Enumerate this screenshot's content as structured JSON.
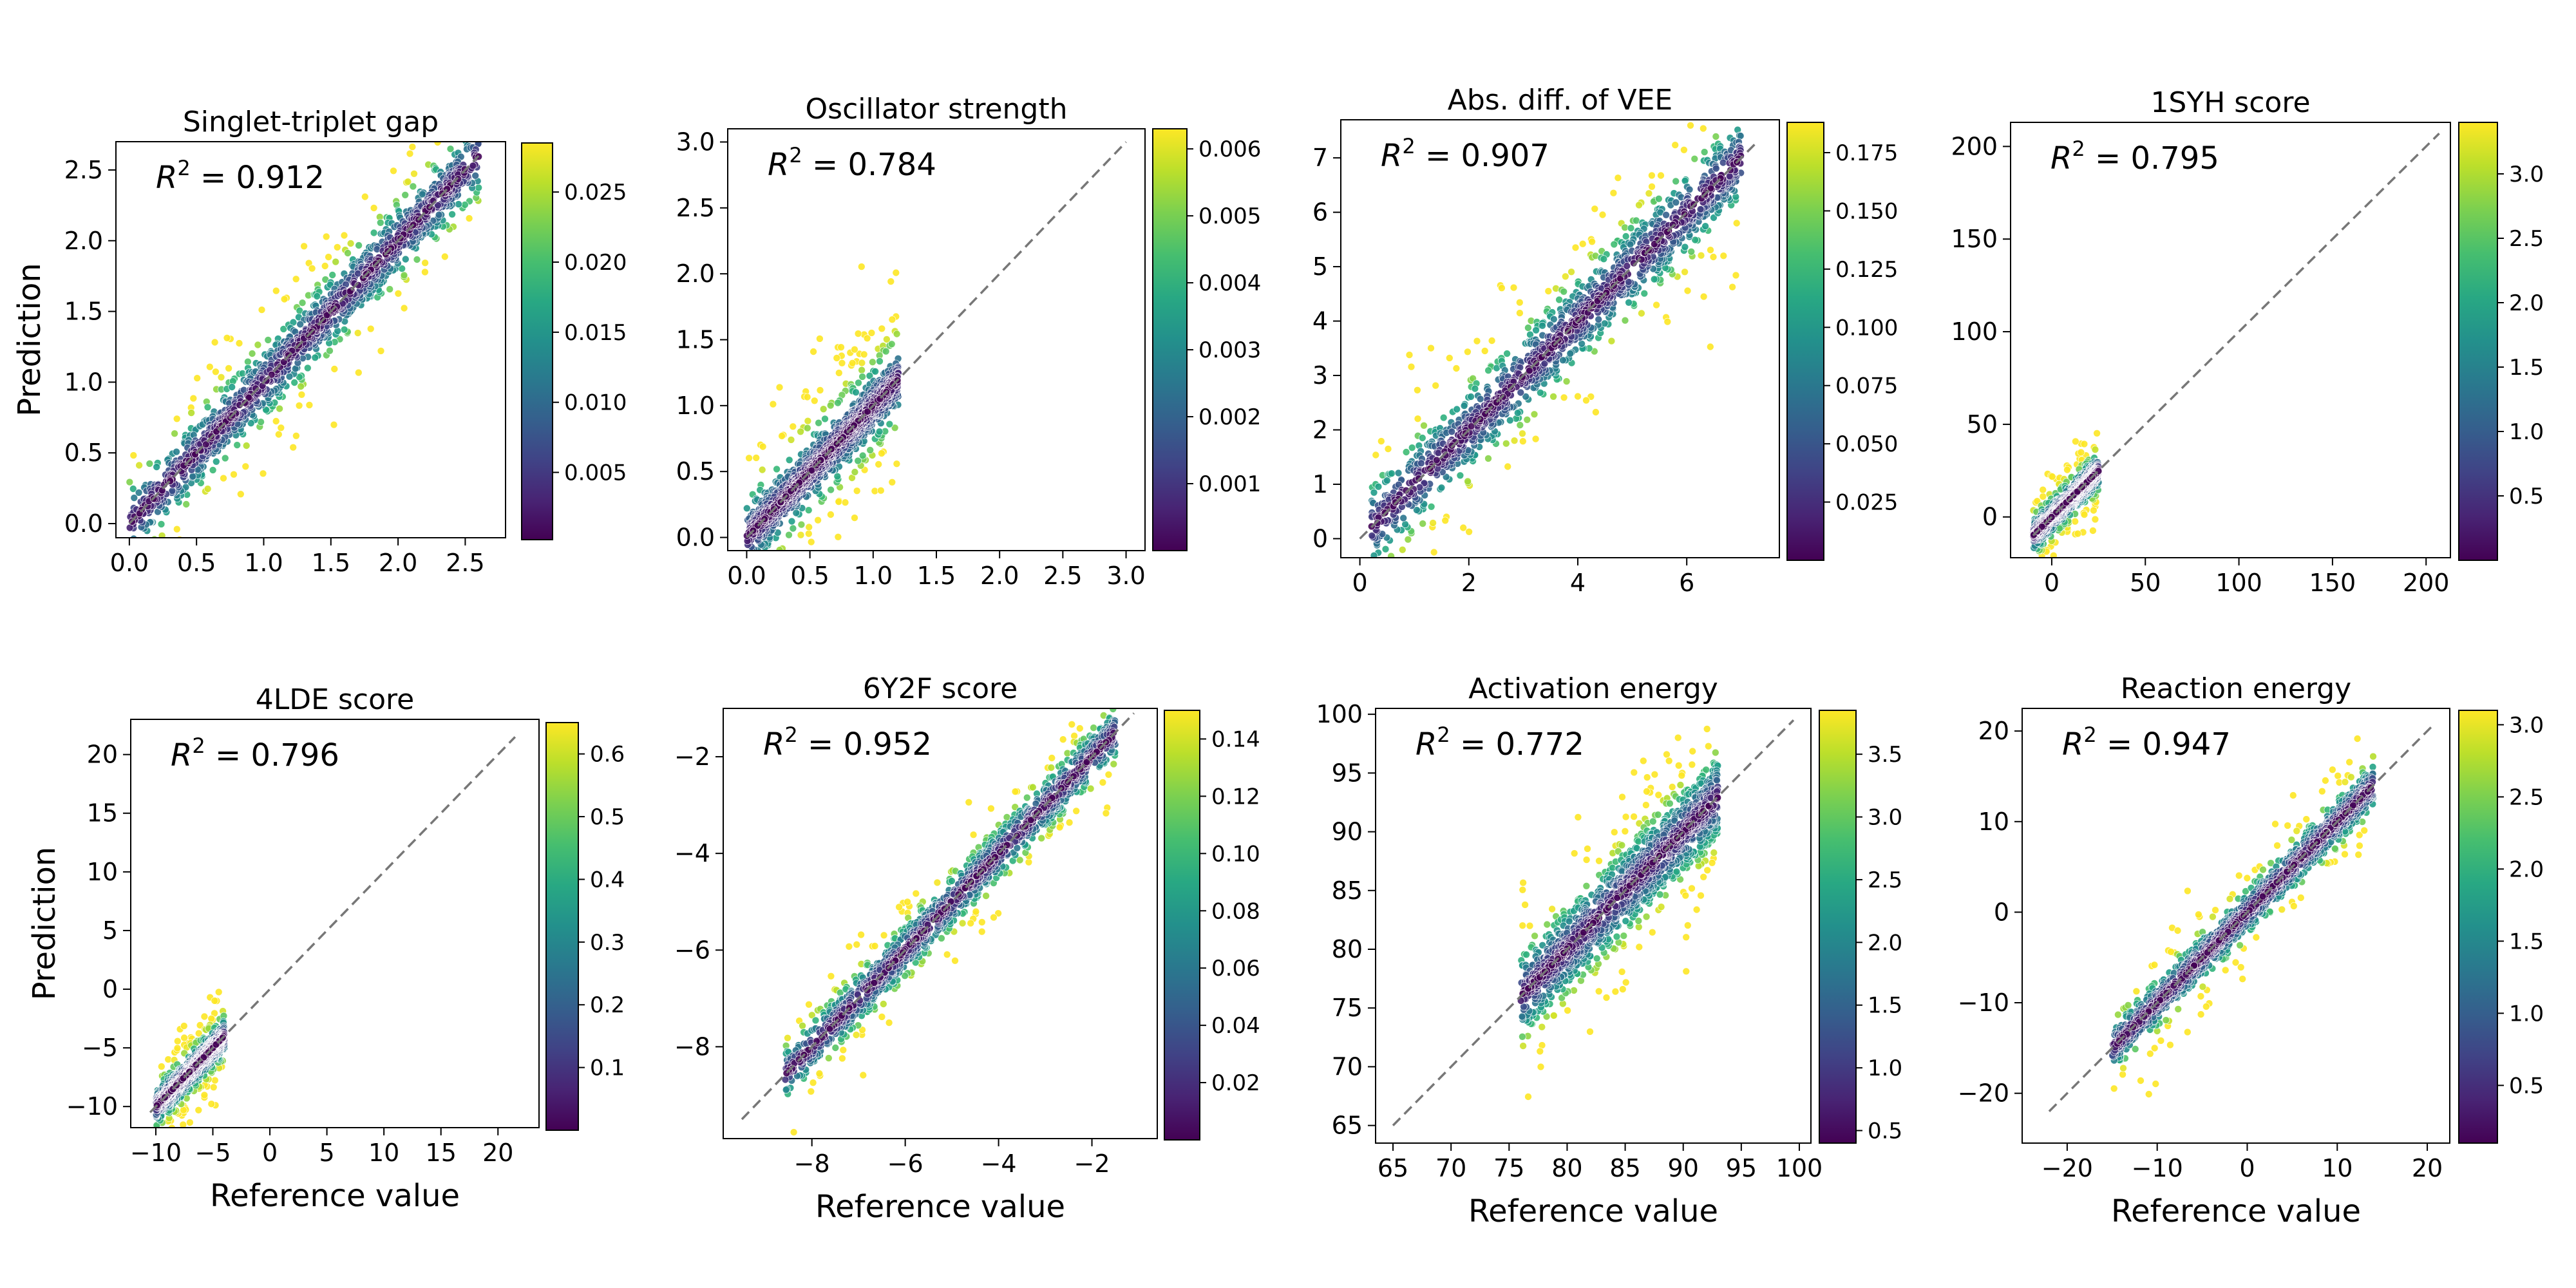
{
  "chart_data": [
    {
      "type": "scatter",
      "title": "Singlet-triplet gap",
      "r2_label": "= 0.912",
      "xlabel": "",
      "ylabel": "Prediction",
      "xlim": [
        -0.1,
        2.8
      ],
      "ylim": [
        -0.1,
        2.7
      ],
      "xticks": [
        0.0,
        0.5,
        1.0,
        1.5,
        2.0,
        2.5
      ],
      "yticks": [
        0.0,
        0.5,
        1.0,
        1.5,
        2.0,
        2.5
      ],
      "tick_decimals": 1,
      "diagonal": [
        0.0,
        2.6
      ],
      "colorbar": {
        "range": [
          0.0002,
          0.0285
        ],
        "ticks": [
          0.005,
          0.01,
          0.015,
          0.02,
          0.025
        ],
        "decimals": 3
      },
      "data_summary": {
        "x_range": [
          0.0,
          2.6
        ],
        "spread": 0.11,
        "outlier_spread": 0.3
      }
    },
    {
      "type": "scatter",
      "title": "Oscillator strength",
      "r2_label": "= 0.784",
      "xlabel": "",
      "ylabel": "",
      "xlim": [
        -0.15,
        3.15
      ],
      "ylim": [
        -0.1,
        3.1
      ],
      "xticks": [
        0.0,
        0.5,
        1.0,
        1.5,
        2.0,
        2.5,
        3.0
      ],
      "yticks": [
        0.0,
        0.5,
        1.0,
        1.5,
        2.0,
        2.5,
        3.0
      ],
      "tick_decimals": 1,
      "diagonal": [
        0.0,
        3.0
      ],
      "colorbar": {
        "range": [
          0.0,
          0.0063
        ],
        "ticks": [
          0.001,
          0.002,
          0.003,
          0.004,
          0.005,
          0.006
        ],
        "decimals": 3
      },
      "data_summary": {
        "x_range": [
          0.0,
          1.2
        ],
        "spread": 0.08,
        "outlier_spread": 0.35
      }
    },
    {
      "type": "scatter",
      "title": "Abs. diff. of VEE",
      "r2_label": "= 0.907",
      "xlabel": "",
      "ylabel": "",
      "xlim": [
        -0.35,
        7.7
      ],
      "ylim": [
        -0.35,
        7.7
      ],
      "xticks": [
        0,
        2,
        4,
        6
      ],
      "yticks": [
        0,
        1,
        2,
        3,
        4,
        5,
        6,
        7
      ],
      "tick_decimals": 0,
      "diagonal": [
        0.0,
        7.3
      ],
      "colorbar": {
        "range": [
          0.0,
          0.188
        ],
        "ticks": [
          0.025,
          0.05,
          0.075,
          0.1,
          0.125,
          0.15,
          0.175
        ],
        "decimals": 3
      },
      "data_summary": {
        "x_range": [
          0.2,
          7.0
        ],
        "spread": 0.35,
        "outlier_spread": 0.9
      }
    },
    {
      "type": "scatter",
      "title": "1SYH score",
      "r2_label": "= 0.795",
      "xlabel": "",
      "ylabel": "",
      "xlim": [
        -22,
        213
      ],
      "ylim": [
        -22,
        213
      ],
      "xticks": [
        0,
        50,
        100,
        150,
        200
      ],
      "yticks": [
        0,
        50,
        100,
        150,
        200
      ],
      "tick_decimals": 0,
      "diagonal": [
        -10.0,
        207.0
      ],
      "colorbar": {
        "range": [
          0.0,
          3.4
        ],
        "ticks": [
          0.5,
          1.0,
          1.5,
          2.0,
          2.5,
          3.0
        ],
        "decimals": 1
      },
      "data_summary": {
        "x_range": [
          -10,
          25
        ],
        "spread": 3,
        "outlier_spread": 12
      }
    },
    {
      "type": "scatter",
      "title": "4LDE score",
      "r2_label": "= 0.796",
      "xlabel": "Reference value",
      "ylabel": "Prediction",
      "xlim": [
        -12.2,
        23.6
      ],
      "ylim": [
        -11.8,
        23.0
      ],
      "xticks": [
        -10,
        -5,
        0,
        5,
        10,
        15,
        20
      ],
      "yticks": [
        -10,
        -5,
        0,
        5,
        10,
        15,
        20
      ],
      "tick_decimals": 0,
      "diagonal": [
        -10.5,
        21.5
      ],
      "colorbar": {
        "range": [
          0.0,
          0.65
        ],
        "ticks": [
          0.1,
          0.2,
          0.3,
          0.4,
          0.5,
          0.6
        ],
        "decimals": 1
      },
      "data_summary": {
        "x_range": [
          -10,
          -4
        ],
        "spread": 0.5,
        "outlier_spread": 2
      }
    },
    {
      "type": "scatter",
      "title": "6Y2F score",
      "r2_label": "= 0.952",
      "xlabel": "Reference value",
      "ylabel": "",
      "xlim": [
        -9.9,
        -0.6
      ],
      "ylim": [
        -9.9,
        -1.0
      ],
      "xticks": [
        -8,
        -6,
        -4,
        -2
      ],
      "yticks": [
        -8,
        -6,
        -4,
        -2
      ],
      "tick_decimals": 0,
      "diagonal": [
        -9.5,
        -1.1
      ],
      "colorbar": {
        "range": [
          0.0,
          0.15
        ],
        "ticks": [
          0.02,
          0.04,
          0.06,
          0.08,
          0.1,
          0.12,
          0.14
        ],
        "decimals": 2
      },
      "data_summary": {
        "x_range": [
          -8.6,
          -1.5
        ],
        "spread": 0.25,
        "outlier_spread": 0.6
      }
    },
    {
      "type": "scatter",
      "title": "Activation energy",
      "r2_label": "= 0.772",
      "xlabel": "Reference value",
      "ylabel": "",
      "xlim": [
        63.5,
        101.0
      ],
      "ylim": [
        63.5,
        100.5
      ],
      "xticks": [
        65,
        70,
        75,
        80,
        85,
        90,
        95,
        100
      ],
      "yticks": [
        65,
        70,
        75,
        80,
        85,
        90,
        95,
        100
      ],
      "tick_decimals": 0,
      "diagonal": [
        65.0,
        99.5
      ],
      "colorbar": {
        "range": [
          0.4,
          3.85
        ],
        "ticks": [
          0.5,
          1.0,
          1.5,
          2.0,
          2.5,
          3.0,
          3.5
        ],
        "decimals": 1
      },
      "data_summary": {
        "x_range": [
          76,
          93
        ],
        "spread": 1.7,
        "outlier_spread": 4
      }
    },
    {
      "type": "scatter",
      "title": "Reaction energy",
      "r2_label": "= 0.947",
      "xlabel": "Reference value",
      "ylabel": "",
      "xlim": [
        -25,
        22.5
      ],
      "ylim": [
        -25.5,
        22.5
      ],
      "xticks": [
        -20,
        -10,
        0,
        10,
        20
      ],
      "yticks": [
        -20,
        -10,
        0,
        10,
        20
      ],
      "tick_decimals": 0,
      "diagonal": [
        -22.0,
        20.5
      ],
      "colorbar": {
        "range": [
          0.1,
          3.1
        ],
        "ticks": [
          0.5,
          1.0,
          1.5,
          2.0,
          2.5,
          3.0
        ],
        "decimals": 1
      },
      "data_summary": {
        "x_range": [
          -15,
          14
        ],
        "spread": 1.0,
        "outlier_spread": 3
      }
    }
  ]
}
